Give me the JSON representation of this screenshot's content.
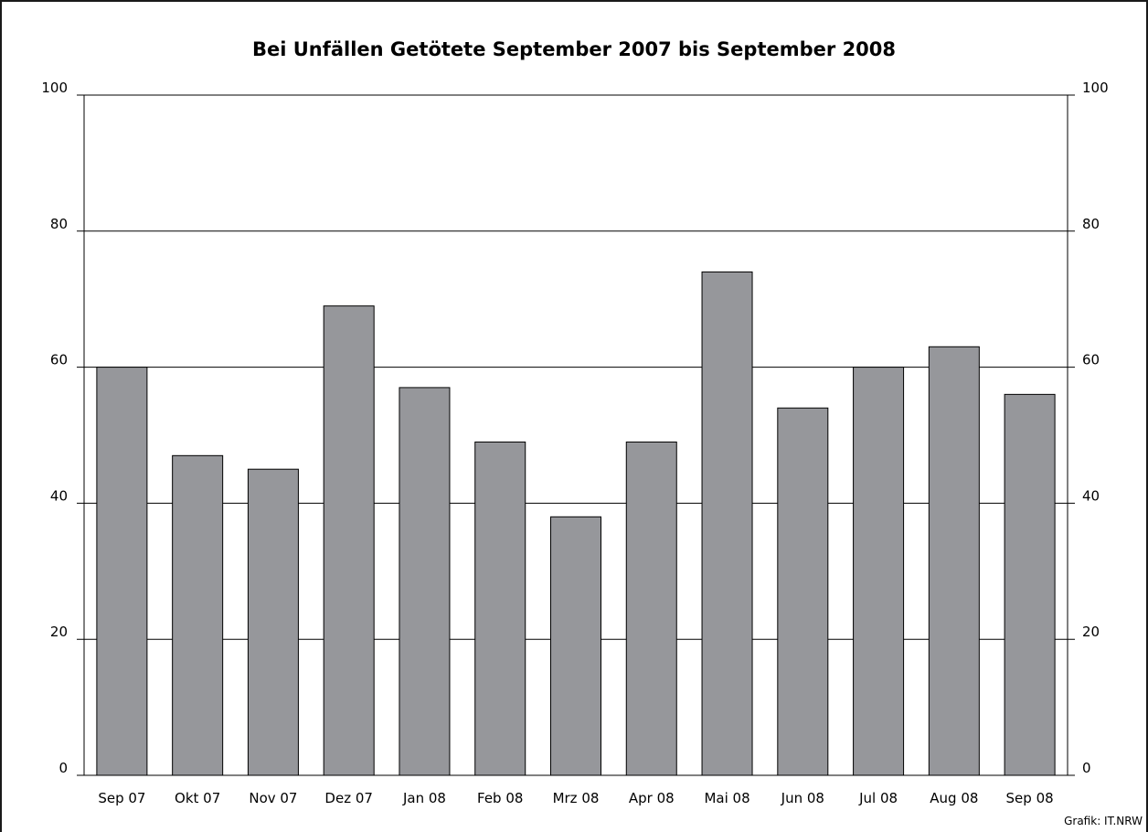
{
  "chart_data": {
    "type": "bar",
    "title": "Bei Unfällen Getötete September 2007 bis September 2008",
    "categories": [
      "Sep 07",
      "Okt 07",
      "Nov 07",
      "Dez 07",
      "Jan 08",
      "Feb 08",
      "Mrz 08",
      "Apr 08",
      "Mai 08",
      "Jun 08",
      "Jul 08",
      "Aug 08",
      "Sep 08"
    ],
    "values": [
      60,
      47,
      45,
      69,
      57,
      49,
      38,
      49,
      74,
      54,
      60,
      63,
      56
    ],
    "xlabel": "",
    "ylabel": "",
    "ylim": [
      0,
      100
    ],
    "yticks": [
      0,
      20,
      40,
      60,
      80,
      100
    ],
    "grid": true,
    "secondary_y_axis": true,
    "legend": "none",
    "bar_color": "#96979b",
    "bar_outline": "#000000"
  },
  "credit": "Grafik: IT.NRW"
}
